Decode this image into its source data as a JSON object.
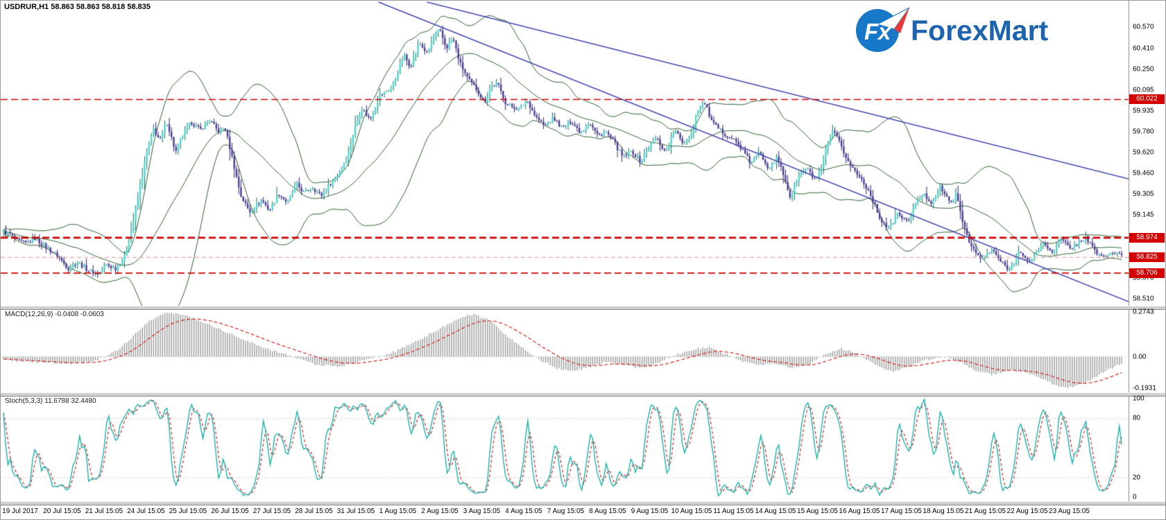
{
  "header": {
    "symbol_line": "USDRUR,H1  58.863 58.863 58.818 58.835"
  },
  "logo": {
    "fx": "Fx",
    "name": "ForexMart",
    "circle_color": "#1878c8",
    "name_color": "#1d63ae",
    "plane_accent": "#e23b3b"
  },
  "chart_data": {
    "type": "candlestick",
    "symbol": "USDRUR",
    "timeframe": "H1",
    "quote": {
      "open": 58.863,
      "high": 58.863,
      "low": 58.818,
      "close": 58.835
    },
    "price_axis": {
      "min": 58.49,
      "max": 60.76,
      "ticks": [
        "60.570",
        "60.410",
        "60.250",
        "60.095",
        "59.935",
        "59.780",
        "59.620",
        "59.460",
        "59.305",
        "59.145",
        "58.670",
        "58.510"
      ]
    },
    "levels": [
      {
        "label": "60.022",
        "price": 60.022,
        "color": "#cc0000",
        "width": 1.6,
        "dash": [
          10,
          5
        ]
      },
      {
        "label": "58.974",
        "price": 58.974,
        "color": "#cc0000",
        "width": 2.6,
        "dash": [
          10,
          5
        ]
      },
      {
        "label": "58.825",
        "price": 58.825,
        "color": "#d89494",
        "width": 1.2,
        "dash": [
          6,
          4
        ]
      },
      {
        "label": "58.706",
        "price": 58.706,
        "color": "#cc0000",
        "width": 1.6,
        "dash": [
          10,
          5
        ]
      }
    ],
    "trendlines": [
      {
        "x1": 0.378,
        "p1": 60.76,
        "x2": 1.0,
        "p2": 59.42,
        "color": "#4446aa"
      },
      {
        "x1": 0.335,
        "p1": 60.76,
        "x2": 1.0,
        "p2": 58.49,
        "color": "#4446aa"
      }
    ],
    "time_labels": [
      "19 Jul 2017",
      "20 Jul 15:05",
      "21 Jul 15:05",
      "24 Jul 15:05",
      "25 Jul 15:05",
      "26 Jul 15:05",
      "27 Jul 15:05",
      "28 Jul 15:05",
      "31 Jul 15:05",
      "1 Aug 15:05",
      "2 Aug 15:05",
      "3 Aug 15:05",
      "4 Aug 15:05",
      "7 Aug 15:05",
      "8 Aug 15:05",
      "9 Aug 15:05",
      "10 Aug 15:05",
      "11 Aug 15:05",
      "14 Aug 15:05",
      "15 Aug 15:05",
      "16 Aug 15:05",
      "17 Aug 15:05",
      "18 Aug 15:05",
      "21 Aug 15:05",
      "22 Aug 15:05",
      "23 Aug 15:05"
    ],
    "candles_count": 500,
    "candle_colors": {
      "up_fill": "#4fd8cc",
      "up_stroke": "#0f6b62",
      "down_fill": "#4a3b93",
      "down_stroke": "#2a2060"
    },
    "price_path": [
      [
        0.0,
        59.02
      ],
      [
        0.006,
        59.0
      ],
      [
        0.012,
        58.95
      ],
      [
        0.02,
        58.93
      ],
      [
        0.028,
        58.97
      ],
      [
        0.0385,
        58.9
      ],
      [
        0.048,
        58.84
      ],
      [
        0.058,
        58.74
      ],
      [
        0.066,
        58.79
      ],
      [
        0.077,
        58.72
      ],
      [
        0.085,
        58.7
      ],
      [
        0.092,
        58.77
      ],
      [
        0.1,
        58.74
      ],
      [
        0.108,
        58.82
      ],
      [
        0.115,
        59.05
      ],
      [
        0.122,
        59.35
      ],
      [
        0.128,
        59.62
      ],
      [
        0.134,
        59.8
      ],
      [
        0.14,
        59.71
      ],
      [
        0.146,
        59.86
      ],
      [
        0.154,
        59.62
      ],
      [
        0.16,
        59.75
      ],
      [
        0.168,
        59.85
      ],
      [
        0.176,
        59.79
      ],
      [
        0.184,
        59.87
      ],
      [
        0.192,
        59.78
      ],
      [
        0.198,
        59.81
      ],
      [
        0.204,
        59.6
      ],
      [
        0.212,
        59.3
      ],
      [
        0.22,
        59.17
      ],
      [
        0.231,
        59.26
      ],
      [
        0.238,
        59.18
      ],
      [
        0.246,
        59.31
      ],
      [
        0.254,
        59.24
      ],
      [
        0.262,
        59.38
      ],
      [
        0.269,
        59.31
      ],
      [
        0.276,
        59.36
      ],
      [
        0.284,
        59.29
      ],
      [
        0.292,
        59.38
      ],
      [
        0.3,
        59.46
      ],
      [
        0.308,
        59.6
      ],
      [
        0.314,
        59.8
      ],
      [
        0.32,
        59.96
      ],
      [
        0.328,
        59.87
      ],
      [
        0.336,
        60.05
      ],
      [
        0.346,
        60.1
      ],
      [
        0.352,
        60.21
      ],
      [
        0.358,
        60.36
      ],
      [
        0.364,
        60.27
      ],
      [
        0.372,
        60.45
      ],
      [
        0.379,
        60.37
      ],
      [
        0.385,
        60.5
      ],
      [
        0.39,
        60.55
      ],
      [
        0.396,
        60.41
      ],
      [
        0.402,
        60.49
      ],
      [
        0.408,
        60.3
      ],
      [
        0.416,
        60.17
      ],
      [
        0.423,
        60.1
      ],
      [
        0.43,
        60.0
      ],
      [
        0.436,
        60.12
      ],
      [
        0.442,
        60.14
      ],
      [
        0.45,
        59.98
      ],
      [
        0.462,
        59.95
      ],
      [
        0.468,
        60.02
      ],
      [
        0.476,
        59.89
      ],
      [
        0.484,
        59.82
      ],
      [
        0.492,
        59.88
      ],
      [
        0.5,
        59.8
      ],
      [
        0.508,
        59.86
      ],
      [
        0.516,
        59.77
      ],
      [
        0.524,
        59.85
      ],
      [
        0.532,
        59.74
      ],
      [
        0.538,
        59.78
      ],
      [
        0.546,
        59.7
      ],
      [
        0.554,
        59.58
      ],
      [
        0.562,
        59.63
      ],
      [
        0.57,
        59.55
      ],
      [
        0.577,
        59.66
      ],
      [
        0.584,
        59.73
      ],
      [
        0.592,
        59.62
      ],
      [
        0.6,
        59.79
      ],
      [
        0.608,
        59.69
      ],
      [
        0.615,
        59.76
      ],
      [
        0.621,
        59.95
      ],
      [
        0.627,
        60.0
      ],
      [
        0.634,
        59.84
      ],
      [
        0.642,
        59.78
      ],
      [
        0.654,
        59.71
      ],
      [
        0.66,
        59.65
      ],
      [
        0.668,
        59.54
      ],
      [
        0.676,
        59.62
      ],
      [
        0.684,
        59.51
      ],
      [
        0.692,
        59.58
      ],
      [
        0.698,
        59.44
      ],
      [
        0.704,
        59.27
      ],
      [
        0.71,
        59.43
      ],
      [
        0.718,
        59.5
      ],
      [
        0.726,
        59.41
      ],
      [
        0.731,
        59.48
      ],
      [
        0.736,
        59.66
      ],
      [
        0.742,
        59.78
      ],
      [
        0.748,
        59.69
      ],
      [
        0.756,
        59.54
      ],
      [
        0.764,
        59.45
      ],
      [
        0.769,
        59.4
      ],
      [
        0.776,
        59.29
      ],
      [
        0.784,
        59.12
      ],
      [
        0.792,
        59.04
      ],
      [
        0.8,
        59.16
      ],
      [
        0.808,
        59.09
      ],
      [
        0.814,
        59.2
      ],
      [
        0.822,
        59.31
      ],
      [
        0.83,
        59.24
      ],
      [
        0.838,
        59.36
      ],
      [
        0.846,
        59.24
      ],
      [
        0.852,
        59.3
      ],
      [
        0.858,
        59.09
      ],
      [
        0.866,
        58.9
      ],
      [
        0.874,
        58.81
      ],
      [
        0.885,
        58.88
      ],
      [
        0.892,
        58.79
      ],
      [
        0.9,
        58.73
      ],
      [
        0.908,
        58.87
      ],
      [
        0.916,
        58.79
      ],
      [
        0.923,
        58.85
      ],
      [
        0.93,
        58.93
      ],
      [
        0.938,
        58.87
      ],
      [
        0.946,
        58.96
      ],
      [
        0.954,
        58.89
      ],
      [
        0.962,
        58.94
      ],
      [
        0.968,
        58.98
      ],
      [
        0.976,
        58.87
      ],
      [
        0.984,
        58.83
      ],
      [
        0.992,
        58.86
      ],
      [
        1.0,
        58.835
      ]
    ],
    "indicators": {
      "bollinger": {
        "period": 34,
        "deviation": 2,
        "color": "#2e5c2e"
      },
      "macd": {
        "title_line": "MACD(12,26,9) -0.0408 -0.0603",
        "main": -0.0408,
        "signal": -0.0603,
        "axis": [
          "0.2743",
          "0.00",
          "-0.1931"
        ],
        "range": [
          -0.1931,
          0.2743
        ],
        "hist_color": "#999999",
        "signal_color": "#cc2222",
        "hist_path": [
          [
            0.0,
            -0.02
          ],
          [
            0.03,
            -0.035
          ],
          [
            0.06,
            -0.04
          ],
          [
            0.08,
            -0.03
          ],
          [
            0.1,
            0.03
          ],
          [
            0.115,
            0.12
          ],
          [
            0.13,
            0.22
          ],
          [
            0.145,
            0.27
          ],
          [
            0.16,
            0.26
          ],
          [
            0.18,
            0.21
          ],
          [
            0.2,
            0.15
          ],
          [
            0.22,
            0.09
          ],
          [
            0.24,
            0.04
          ],
          [
            0.26,
            0.0
          ],
          [
            0.28,
            -0.05
          ],
          [
            0.3,
            -0.06
          ],
          [
            0.315,
            -0.035
          ],
          [
            0.33,
            -0.01
          ],
          [
            0.35,
            0.03
          ],
          [
            0.37,
            0.1
          ],
          [
            0.39,
            0.17
          ],
          [
            0.405,
            0.23
          ],
          [
            0.42,
            0.26
          ],
          [
            0.435,
            0.22
          ],
          [
            0.45,
            0.13
          ],
          [
            0.465,
            0.05
          ],
          [
            0.48,
            -0.02
          ],
          [
            0.495,
            -0.07
          ],
          [
            0.51,
            -0.09
          ],
          [
            0.525,
            -0.06
          ],
          [
            0.54,
            -0.03
          ],
          [
            0.555,
            -0.05
          ],
          [
            0.57,
            -0.07
          ],
          [
            0.585,
            -0.04
          ],
          [
            0.6,
            0.01
          ],
          [
            0.615,
            0.04
          ],
          [
            0.63,
            0.06
          ],
          [
            0.645,
            0.02
          ],
          [
            0.66,
            -0.03
          ],
          [
            0.675,
            -0.05
          ],
          [
            0.69,
            -0.04
          ],
          [
            0.705,
            -0.07
          ],
          [
            0.72,
            -0.05
          ],
          [
            0.735,
            0.02
          ],
          [
            0.75,
            0.05
          ],
          [
            0.765,
            0.01
          ],
          [
            0.78,
            -0.05
          ],
          [
            0.795,
            -0.09
          ],
          [
            0.81,
            -0.06
          ],
          [
            0.825,
            -0.02
          ],
          [
            0.84,
            0.0
          ],
          [
            0.855,
            -0.03
          ],
          [
            0.87,
            -0.09
          ],
          [
            0.885,
            -0.11
          ],
          [
            0.9,
            -0.08
          ],
          [
            0.915,
            -0.1
          ],
          [
            0.93,
            -0.14
          ],
          [
            0.945,
            -0.18
          ],
          [
            0.955,
            -0.19
          ],
          [
            0.97,
            -0.15
          ],
          [
            0.985,
            -0.09
          ],
          [
            1.0,
            -0.04
          ]
        ]
      },
      "stoch": {
        "title_line": "Stoch(5,3,3) 11.6788 32.4480",
        "k": 11.6788,
        "d": 32.448,
        "axis": [
          "100",
          "80",
          "20",
          "0"
        ],
        "guide_levels": [
          80,
          20
        ],
        "k_color": "#17b1a8",
        "d_color": "#cc2222"
      }
    }
  }
}
